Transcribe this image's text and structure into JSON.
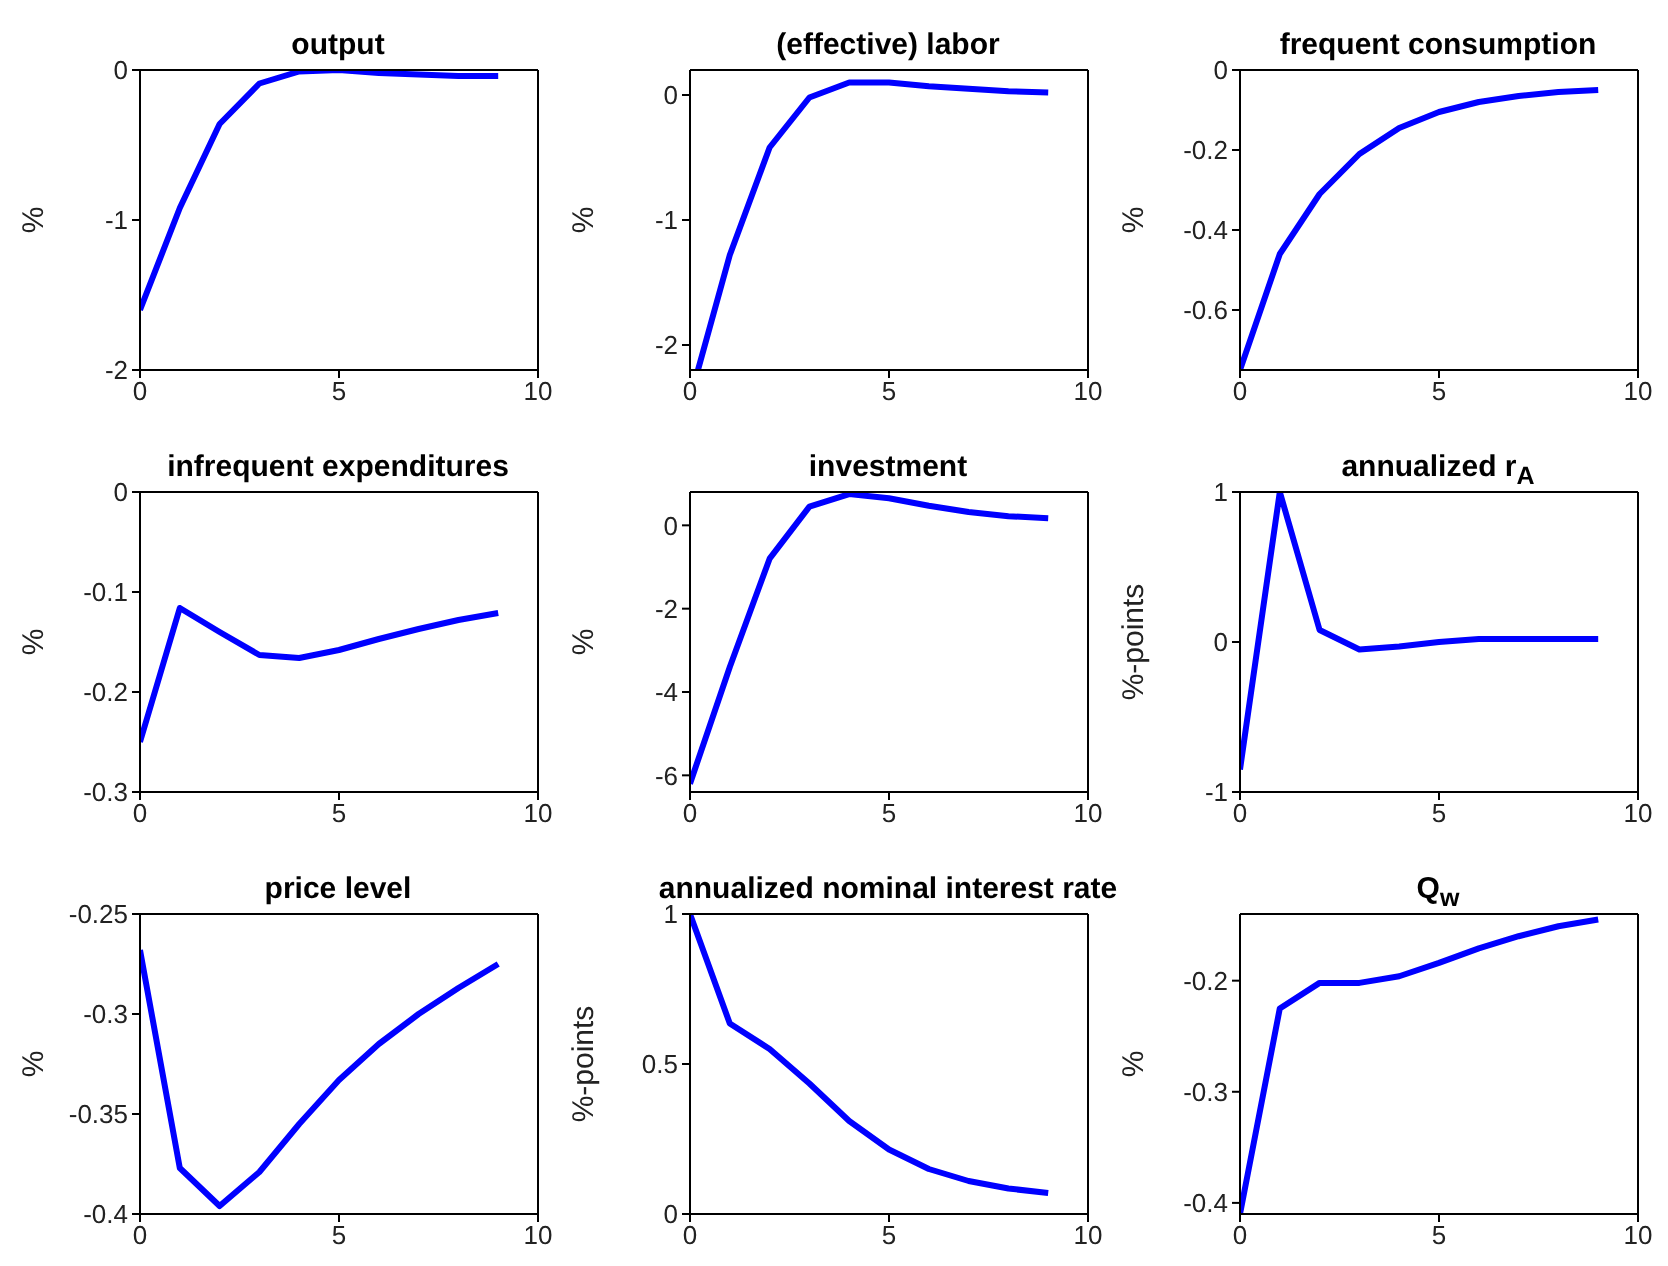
{
  "chart_data": [
    {
      "type": "line",
      "title": "output",
      "ylabel": "%",
      "x": [
        0,
        1,
        2,
        3,
        4,
        5,
        6,
        7,
        8,
        9
      ],
      "series": [
        {
          "color": "#0000ff",
          "values": [
            -1.6,
            -0.92,
            -0.36,
            -0.09,
            -0.01,
            0,
            -0.02,
            -0.03,
            -0.04,
            -0.04
          ]
        }
      ],
      "xlim": [
        0,
        10
      ],
      "xticks": [
        0,
        5,
        10
      ],
      "ylim": [
        -2,
        0
      ],
      "yticks": [
        -2,
        -1,
        0
      ]
    },
    {
      "type": "line",
      "title": "(effective) labor",
      "ylabel": "%",
      "series": [
        {
          "color": "#0000ff",
          "x": [
            0.2,
            1,
            2,
            3,
            4,
            5,
            6,
            7,
            8,
            9
          ],
          "values": [
            -2.2,
            -1.28,
            -0.42,
            -0.02,
            0.1,
            0.1,
            0.07,
            0.05,
            0.03,
            0.02
          ]
        }
      ],
      "xlim": [
        0,
        10
      ],
      "xticks": [
        0,
        5,
        10
      ],
      "ylim": [
        -2.2,
        0.2
      ],
      "yticks": [
        -2,
        -1,
        0
      ]
    },
    {
      "type": "line",
      "title": "frequent consumption",
      "ylabel": "%",
      "x": [
        0,
        1,
        2,
        3,
        4,
        5,
        6,
        7,
        8,
        9
      ],
      "series": [
        {
          "color": "#0000ff",
          "values": [
            -0.75,
            -0.46,
            -0.31,
            -0.21,
            -0.145,
            -0.105,
            -0.08,
            -0.065,
            -0.055,
            -0.05
          ]
        }
      ],
      "xlim": [
        0,
        10
      ],
      "xticks": [
        0,
        5,
        10
      ],
      "ylim": [
        -0.75,
        0
      ],
      "yticks": [
        -0.6,
        -0.4,
        -0.2,
        0
      ]
    },
    {
      "type": "line",
      "title": "infrequent expenditures",
      "ylabel": "%",
      "x": [
        0,
        1,
        2,
        3,
        4,
        5,
        6,
        7,
        8,
        9
      ],
      "series": [
        {
          "color": "#0000ff",
          "values": [
            -0.25,
            -0.116,
            -0.14,
            -0.163,
            -0.166,
            -0.158,
            -0.147,
            -0.137,
            -0.128,
            -0.121
          ]
        }
      ],
      "xlim": [
        0,
        10
      ],
      "xticks": [
        0,
        5,
        10
      ],
      "ylim": [
        -0.3,
        0
      ],
      "yticks": [
        -0.3,
        -0.2,
        -0.1,
        0
      ]
    },
    {
      "type": "line",
      "title": "investment",
      "ylabel": "%",
      "x": [
        0,
        1,
        2,
        3,
        4,
        5,
        6,
        7,
        8,
        9
      ],
      "series": [
        {
          "color": "#0000ff",
          "values": [
            -6.2,
            -3.4,
            -0.8,
            0.45,
            0.75,
            0.65,
            0.47,
            0.32,
            0.22,
            0.17
          ]
        }
      ],
      "xlim": [
        0,
        10
      ],
      "xticks": [
        0,
        5,
        10
      ],
      "ylim": [
        -6.4,
        0.8
      ],
      "yticks": [
        -6,
        -4,
        -2,
        0
      ]
    },
    {
      "type": "line",
      "title": "annualized r$_{A}$",
      "ylabel": "%-points",
      "x": [
        0,
        1,
        2,
        3,
        4,
        5,
        6,
        7,
        8,
        9
      ],
      "series": [
        {
          "color": "#0000ff",
          "values": [
            -0.85,
            1,
            0.08,
            -0.05,
            -0.03,
            0,
            0.02,
            0.02,
            0.02,
            0.02
          ]
        }
      ],
      "xlim": [
        0,
        10
      ],
      "xticks": [
        0,
        5,
        10
      ],
      "ylim": [
        -1,
        1
      ],
      "yticks": [
        -1,
        0,
        1
      ]
    },
    {
      "type": "line",
      "title": "price level",
      "ylabel": "%",
      "x": [
        0,
        1,
        2,
        3,
        4,
        5,
        6,
        7,
        8,
        9
      ],
      "series": [
        {
          "color": "#0000ff",
          "values": [
            -0.268,
            -0.377,
            -0.396,
            -0.379,
            -0.355,
            -0.333,
            -0.315,
            -0.3,
            -0.287,
            -0.275
          ]
        }
      ],
      "xlim": [
        0,
        10
      ],
      "xticks": [
        0,
        5,
        10
      ],
      "ylim": [
        -0.4,
        -0.25
      ],
      "yticks": [
        -0.4,
        -0.35,
        -0.3,
        -0.25
      ]
    },
    {
      "type": "line",
      "title": "annualized nominal interest rate",
      "ylabel": "%-points",
      "x": [
        0,
        1,
        2,
        3,
        4,
        5,
        6,
        7,
        8,
        9
      ],
      "series": [
        {
          "color": "#0000ff",
          "values": [
            1,
            0.635,
            0.55,
            0.435,
            0.31,
            0.215,
            0.15,
            0.11,
            0.085,
            0.07
          ]
        }
      ],
      "xlim": [
        0,
        10
      ],
      "xticks": [
        0,
        5,
        10
      ],
      "ylim": [
        0,
        1
      ],
      "yticks": [
        0,
        0.5,
        1
      ]
    },
    {
      "type": "line",
      "title": "Q$_{w}$",
      "ylabel": "%",
      "x": [
        0,
        1,
        2,
        3,
        4,
        5,
        6,
        7,
        8,
        9
      ],
      "series": [
        {
          "color": "#0000ff",
          "values": [
            -0.41,
            -0.225,
            -0.202,
            -0.202,
            -0.196,
            -0.184,
            -0.171,
            -0.16,
            -0.151,
            -0.145
          ]
        }
      ],
      "xlim": [
        0,
        10
      ],
      "xticks": [
        0,
        5,
        10
      ],
      "ylim": [
        -0.41,
        -0.14
      ],
      "yticks": [
        -0.4,
        -0.3,
        -0.2
      ]
    }
  ]
}
